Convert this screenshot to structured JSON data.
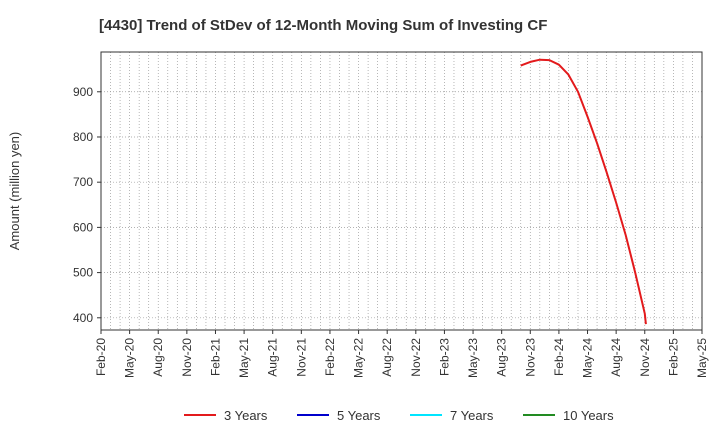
{
  "chart_data": {
    "type": "line",
    "title": "[4430]  Trend of StDev of 12-Month Moving Sum of Investing CF",
    "xlabel": "",
    "ylabel": "Amount (million yen)",
    "x_ticks": [
      "Feb-20",
      "May-20",
      "Aug-20",
      "Nov-20",
      "Feb-21",
      "May-21",
      "Aug-21",
      "Nov-21",
      "Feb-22",
      "May-22",
      "Aug-22",
      "Nov-22",
      "Feb-23",
      "May-23",
      "Aug-23",
      "Nov-23",
      "Feb-24",
      "May-24",
      "Aug-24",
      "Nov-24",
      "Feb-25",
      "May-25"
    ],
    "y_ticks": [
      400,
      500,
      600,
      700,
      800,
      900
    ],
    "ylim": [
      373,
      988
    ],
    "xlim": [
      "Feb-20",
      "May-25"
    ],
    "grid": true,
    "legend_position": "bottom",
    "series": [
      {
        "name": "3 Years",
        "color": "#e31a1c",
        "points": [
          [
            "Oct-23",
            958
          ],
          [
            "Nov-23",
            966
          ],
          [
            "Dec-23",
            971
          ],
          [
            "Jan-24",
            970
          ],
          [
            "Feb-24",
            960
          ],
          [
            "Mar-24",
            938
          ],
          [
            "Apr-24",
            900
          ],
          [
            "May-24",
            845
          ],
          [
            "Jun-24",
            786
          ],
          [
            "Jul-24",
            722
          ],
          [
            "Aug-24",
            655
          ],
          [
            "Sep-24",
            583
          ],
          [
            "Oct-24",
            500
          ],
          [
            "Nov-24",
            409
          ],
          [
            "Nov-24b",
            386
          ]
        ]
      },
      {
        "name": "5 Years",
        "color": "#0000cc",
        "points": []
      },
      {
        "name": "7 Years",
        "color": "#00e5ff",
        "points": []
      },
      {
        "name": "10 Years",
        "color": "#228b22",
        "points": []
      }
    ]
  }
}
